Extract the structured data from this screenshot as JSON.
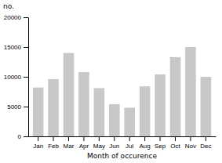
{
  "chart_data": {
    "type": "bar",
    "categories": [
      "Jan",
      "Feb",
      "Mar",
      "Apr",
      "May",
      "Jun",
      "Jul",
      "Aug",
      "Sep",
      "Oct",
      "Nov",
      "Dec"
    ],
    "values": [
      8200,
      9600,
      14000,
      10800,
      8100,
      5400,
      4800,
      8400,
      10400,
      13300,
      15000,
      10000
    ],
    "color": "#c8c8c8",
    "xlabel": "Month of occurence",
    "ylabel": "no.",
    "ylim": [
      0,
      20000
    ],
    "yticks": [
      0,
      5000,
      10000,
      15000,
      20000
    ]
  }
}
